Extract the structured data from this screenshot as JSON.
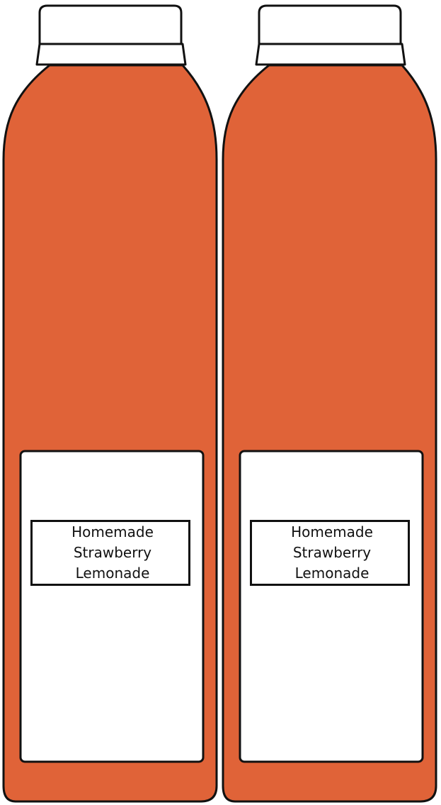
{
  "colors": {
    "liquid": "#E06338",
    "label": "#FFFFFF",
    "cap": "#FFFFFF",
    "outline": "#111111"
  },
  "bottles": [
    {
      "label_lines": [
        "Homemade",
        "Strawberry",
        "Lemonade"
      ]
    },
    {
      "label_lines": [
        "Homemade",
        "Strawberry",
        "Lemonade"
      ]
    }
  ]
}
